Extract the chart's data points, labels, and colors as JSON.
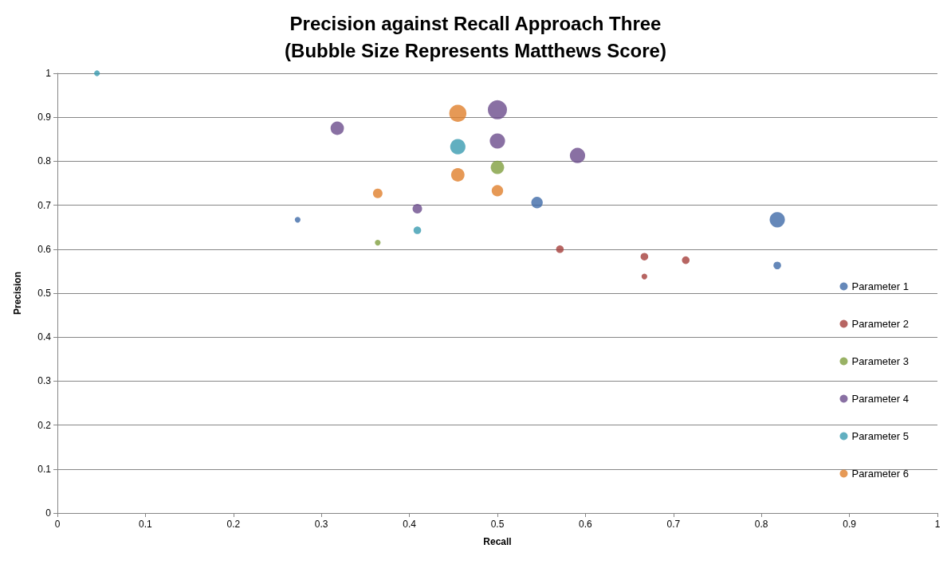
{
  "chart_data": {
    "type": "bubble",
    "title": "Precision against Recall Approach Three",
    "subtitle": "(Bubble Size Represents Matthews Score)",
    "xlabel": "Recall",
    "ylabel": "Precision",
    "xlim": [
      0,
      1
    ],
    "xticks": [
      0,
      0.1,
      0.2,
      0.3,
      0.4,
      0.5,
      0.6,
      0.7,
      0.8,
      0.9,
      1
    ],
    "ylim": [
      0,
      1
    ],
    "yticks": [
      0,
      0.1,
      0.2,
      0.3,
      0.4,
      0.5,
      0.6,
      0.7,
      0.8,
      0.9,
      1
    ],
    "grid": "y",
    "legend": "right",
    "series": [
      {
        "name": "Parameter 1",
        "color": "#3e6aa8",
        "x": [
          0.273,
          0.545,
          0.818,
          0.818
        ],
        "values": [
          0.667,
          0.706,
          0.667,
          0.563
        ],
        "sizes": [
          0.09,
          0.36,
          0.64,
          0.16
        ]
      },
      {
        "name": "Parameter 2",
        "color": "#a53e3b",
        "x": [
          0.571,
          0.667,
          0.667,
          0.714
        ],
        "values": [
          0.6,
          0.583,
          0.538,
          0.575
        ],
        "sizes": [
          0.16,
          0.16,
          0.09,
          0.16
        ]
      },
      {
        "name": "Parameter 3",
        "color": "#7f9f3f",
        "x": [
          0.364,
          0.5
        ],
        "values": [
          0.615,
          0.786
        ],
        "sizes": [
          0.09,
          0.49
        ]
      },
      {
        "name": "Parameter 4",
        "color": "#6b4c8c",
        "x": [
          0.318,
          0.409,
          0.5,
          0.5,
          0.591
        ],
        "values": [
          0.875,
          0.692,
          0.917,
          0.846,
          0.813
        ],
        "sizes": [
          0.49,
          0.25,
          1,
          0.64,
          0.64
        ]
      },
      {
        "name": "Parameter 5",
        "color": "#3a9bb0",
        "x": [
          0.045,
          0.455,
          0.409
        ],
        "values": [
          1.0,
          0.833,
          0.643
        ],
        "sizes": [
          0.09,
          0.64,
          0.16
        ]
      },
      {
        "name": "Parameter 6",
        "color": "#e07f2c",
        "x": [
          0.364,
          0.455,
          0.455,
          0.5
        ],
        "values": [
          0.727,
          0.909,
          0.769,
          0.733
        ],
        "sizes": [
          0.25,
          0.81,
          0.49,
          0.36
        ]
      }
    ]
  }
}
